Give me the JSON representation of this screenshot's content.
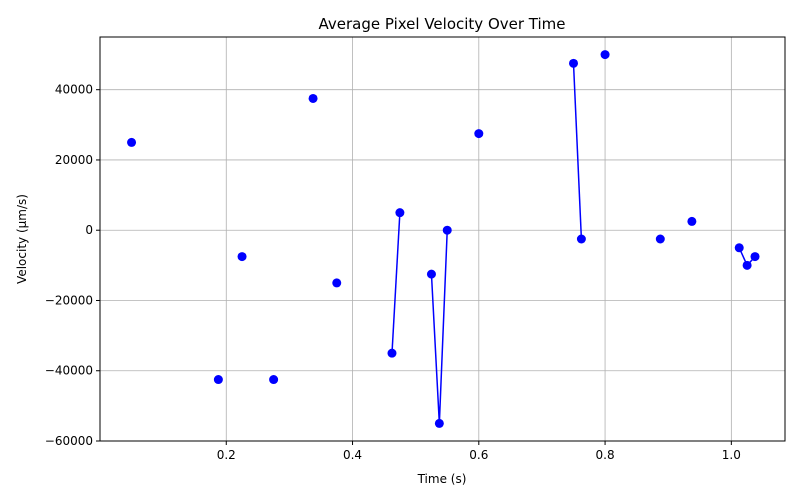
{
  "chart_data": {
    "type": "scatter",
    "title": "Average Pixel Velocity Over Time",
    "xlabel": "Time (s)",
    "ylabel": "Velocity (µm/s)",
    "xlim": [
      0,
      1.085
    ],
    "ylim": [
      -60000,
      55000
    ],
    "xticks": [
      0.2,
      0.4,
      0.6,
      0.8,
      1.0
    ],
    "xtick_labels": [
      "0.2",
      "0.4",
      "0.6",
      "0.8",
      "1.0"
    ],
    "yticks": [
      -60000,
      -40000,
      -20000,
      0,
      20000,
      40000
    ],
    "ytick_labels": [
      "−60000",
      "−40000",
      "−20000",
      "0",
      "20000",
      "40000"
    ],
    "grid": true,
    "color": "#0000ff",
    "points": [
      {
        "x": 0.05,
        "y": 25000
      },
      {
        "x": 0.1875,
        "y": -42500
      },
      {
        "x": 0.225,
        "y": -7500
      },
      {
        "x": 0.275,
        "y": -42500
      },
      {
        "x": 0.3375,
        "y": 37500
      },
      {
        "x": 0.375,
        "y": -15000
      },
      {
        "x": 0.4625,
        "y": -35000
      },
      {
        "x": 0.475,
        "y": 5000
      },
      {
        "x": 0.525,
        "y": -12500
      },
      {
        "x": 0.5375,
        "y": -55000
      },
      {
        "x": 0.55,
        "y": 0
      },
      {
        "x": 0.6,
        "y": 27500
      },
      {
        "x": 0.75,
        "y": 47500
      },
      {
        "x": 0.7625,
        "y": -2500
      },
      {
        "x": 0.8,
        "y": 50000
      },
      {
        "x": 0.8875,
        "y": -2500
      },
      {
        "x": 0.9375,
        "y": 2500
      },
      {
        "x": 1.0125,
        "y": -5000
      },
      {
        "x": 1.025,
        "y": -10000
      },
      {
        "x": 1.0375,
        "y": -7500
      }
    ],
    "segments": [
      [
        [
          0.4625,
          -35000
        ],
        [
          0.475,
          5000
        ]
      ],
      [
        [
          0.525,
          -12500
        ],
        [
          0.5375,
          -55000
        ],
        [
          0.55,
          0
        ]
      ],
      [
        [
          0.75,
          47500
        ],
        [
          0.7625,
          -2500
        ]
      ],
      [
        [
          1.0125,
          -5000
        ],
        [
          1.025,
          -10000
        ],
        [
          1.0375,
          -7500
        ]
      ]
    ]
  }
}
